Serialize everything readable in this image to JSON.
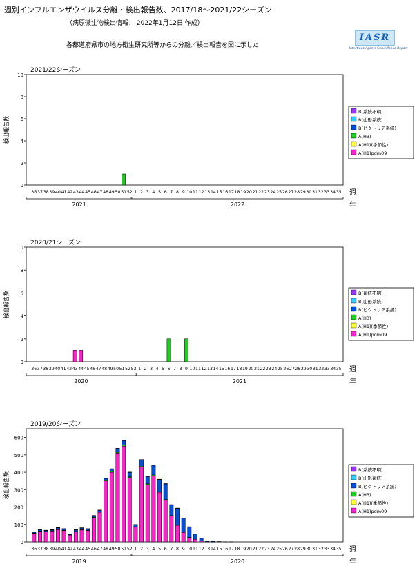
{
  "header": {
    "title": "週別インフルエンザウイルス分離・検出報告数、2017/18～2021/22シーズン",
    "info": "（病原微生物検出情報： 2022年1月12日 作成）",
    "description": "各都道府県市の地方衛生研究所等からの分離／検出報告を図に示した"
  },
  "logo": {
    "mark": "IASR",
    "subtitle": "Infectious Agents Surveillance Report"
  },
  "legend_labels": [
    "B(系統不明)",
    "B(山形系統)",
    "B(ビクトリア系統)",
    "A(H3)",
    "A(H1)(季節性)",
    "A(H1)pdm09"
  ],
  "colors": {
    "B_unknown": "#9933ff",
    "B_yamagata": "#33ccff",
    "B_victoria": "#0050e0",
    "A_H3": "#22cc22",
    "A_H1_seasonal": "#ffff33",
    "A_H1pdm09": "#ff22cc",
    "bar_outline": "#000000"
  },
  "chart_data": [
    {
      "type": "bar",
      "stacked": true,
      "title": "2021/22シーズン",
      "ylabel": "検出報告数",
      "xlabel": "週",
      "year_axis_label": "年",
      "ylim": [
        0,
        10
      ],
      "yticks": [
        0,
        2,
        4,
        6,
        8,
        10
      ],
      "year_labels": [
        "2021",
        "2022"
      ],
      "categories": [
        "36",
        "37",
        "38",
        "39",
        "40",
        "41",
        "42",
        "43",
        "44",
        "45",
        "46",
        "47",
        "48",
        "49",
        "50",
        "51",
        "52",
        "1",
        "2",
        "3",
        "4",
        "5",
        "6",
        "7",
        "8",
        "9",
        "10",
        "11",
        "12",
        "13",
        "14",
        "15",
        "16",
        "17",
        "18",
        "19",
        "20",
        "21",
        "22",
        "23",
        "24",
        "25",
        "26",
        "27",
        "28",
        "29",
        "30",
        "31",
        "32",
        "33",
        "34",
        "35"
      ],
      "series": [
        {
          "name": "A(H1)pdm09",
          "values": [
            0,
            0,
            0,
            0,
            0,
            0,
            0,
            0,
            0,
            0,
            0,
            0,
            0,
            0,
            0,
            0,
            0,
            0,
            0,
            0,
            0,
            0,
            0,
            0,
            0,
            0,
            0,
            0,
            0,
            0,
            0,
            0,
            0,
            0,
            0,
            0,
            0,
            0,
            0,
            0,
            0,
            0,
            0,
            0,
            0,
            0,
            0,
            0,
            0,
            0,
            0,
            0
          ]
        },
        {
          "name": "A(H1)(季節性)",
          "values": [
            0,
            0,
            0,
            0,
            0,
            0,
            0,
            0,
            0,
            0,
            0,
            0,
            0,
            0,
            0,
            0,
            0,
            0,
            0,
            0,
            0,
            0,
            0,
            0,
            0,
            0,
            0,
            0,
            0,
            0,
            0,
            0,
            0,
            0,
            0,
            0,
            0,
            0,
            0,
            0,
            0,
            0,
            0,
            0,
            0,
            0,
            0,
            0,
            0,
            0,
            0,
            0
          ]
        },
        {
          "name": "A(H3)",
          "values": [
            0,
            0,
            0,
            0,
            0,
            0,
            0,
            0,
            0,
            0,
            0,
            0,
            0,
            0,
            0,
            1,
            0,
            0,
            0,
            0,
            0,
            0,
            0,
            0,
            0,
            0,
            0,
            0,
            0,
            0,
            0,
            0,
            0,
            0,
            0,
            0,
            0,
            0,
            0,
            0,
            0,
            0,
            0,
            0,
            0,
            0,
            0,
            0,
            0,
            0,
            0,
            0
          ]
        },
        {
          "name": "B(ビクトリア系統)",
          "values": [
            0,
            0,
            0,
            0,
            0,
            0,
            0,
            0,
            0,
            0,
            0,
            0,
            0,
            0,
            0,
            0,
            0,
            0,
            0,
            0,
            0,
            0,
            0,
            0,
            0,
            0,
            0,
            0,
            0,
            0,
            0,
            0,
            0,
            0,
            0,
            0,
            0,
            0,
            0,
            0,
            0,
            0,
            0,
            0,
            0,
            0,
            0,
            0,
            0,
            0,
            0,
            0
          ]
        },
        {
          "name": "B(山形系統)",
          "values": [
            0,
            0,
            0,
            0,
            0,
            0,
            0,
            0,
            0,
            0,
            0,
            0,
            0,
            0,
            0,
            0,
            0,
            0,
            0,
            0,
            0,
            0,
            0,
            0,
            0,
            0,
            0,
            0,
            0,
            0,
            0,
            0,
            0,
            0,
            0,
            0,
            0,
            0,
            0,
            0,
            0,
            0,
            0,
            0,
            0,
            0,
            0,
            0,
            0,
            0,
            0,
            0
          ]
        },
        {
          "name": "B(系統不明)",
          "values": [
            0,
            0,
            0,
            0,
            0,
            0,
            0,
            0,
            0,
            0,
            0,
            0,
            0,
            0,
            0,
            0,
            0,
            0,
            0,
            0,
            0,
            0,
            0,
            0,
            0,
            0,
            0,
            0,
            0,
            0,
            0,
            0,
            0,
            0,
            0,
            0,
            0,
            0,
            0,
            0,
            0,
            0,
            0,
            0,
            0,
            0,
            0,
            0,
            0,
            0,
            0,
            0
          ]
        }
      ]
    },
    {
      "type": "bar",
      "stacked": true,
      "title": "2020/21シーズン",
      "ylabel": "検出報告数",
      "xlabel": "週",
      "year_axis_label": "年",
      "ylim": [
        0,
        10
      ],
      "yticks": [
        0,
        2,
        4,
        6,
        8,
        10
      ],
      "year_labels": [
        "2020",
        "2021"
      ],
      "categories": [
        "36",
        "37",
        "38",
        "39",
        "40",
        "41",
        "42",
        "43",
        "44",
        "45",
        "46",
        "47",
        "48",
        "49",
        "50",
        "51",
        "52",
        "53",
        "1",
        "2",
        "3",
        "4",
        "5",
        "6",
        "7",
        "8",
        "9",
        "10",
        "11",
        "12",
        "13",
        "14",
        "15",
        "16",
        "17",
        "18",
        "19",
        "20",
        "21",
        "22",
        "23",
        "24",
        "25",
        "26",
        "27",
        "28",
        "29",
        "30",
        "31",
        "32",
        "33",
        "34",
        "35"
      ],
      "series": [
        {
          "name": "A(H1)pdm09",
          "values": [
            0,
            0,
            0,
            0,
            0,
            0,
            0,
            1,
            1,
            0,
            0,
            0,
            0,
            0,
            0,
            0,
            0,
            0,
            0,
            0,
            0,
            0,
            0,
            0,
            0,
            0,
            0,
            0,
            0,
            0,
            0,
            0,
            0,
            0,
            0,
            0,
            0,
            0,
            0,
            0,
            0,
            0,
            0,
            0,
            0,
            0,
            0,
            0,
            0,
            0,
            0,
            0,
            0
          ]
        },
        {
          "name": "A(H1)(季節性)",
          "values": [
            0,
            0,
            0,
            0,
            0,
            0,
            0,
            0,
            0,
            0,
            0,
            0,
            0,
            0,
            0,
            0,
            0,
            0,
            0,
            0,
            0,
            0,
            0,
            0,
            0,
            0,
            0,
            0,
            0,
            0,
            0,
            0,
            0,
            0,
            0,
            0,
            0,
            0,
            0,
            0,
            0,
            0,
            0,
            0,
            0,
            0,
            0,
            0,
            0,
            0,
            0,
            0,
            0
          ]
        },
        {
          "name": "A(H3)",
          "values": [
            0,
            0,
            0,
            0,
            0,
            0,
            0,
            0,
            0,
            0,
            0,
            0,
            0,
            0,
            0,
            0,
            0,
            0,
            0,
            0,
            0,
            0,
            0,
            2,
            0,
            0,
            2,
            0,
            0,
            0,
            0,
            0,
            0,
            0,
            0,
            0,
            0,
            0,
            0,
            0,
            0,
            0,
            0,
            0,
            0,
            0,
            0,
            0,
            0,
            0,
            0,
            0,
            0
          ]
        },
        {
          "name": "B(ビクトリア系統)",
          "values": [
            0,
            0,
            0,
            0,
            0,
            0,
            0,
            0,
            0,
            0,
            0,
            0,
            0,
            0,
            0,
            0,
            0,
            0,
            0,
            0,
            0,
            0,
            0,
            0,
            0,
            0,
            0,
            0,
            0,
            0,
            0,
            0,
            0,
            0,
            0,
            0,
            0,
            0,
            0,
            0,
            0,
            0,
            0,
            0,
            0,
            0,
            0,
            0,
            0,
            0,
            0,
            0,
            0
          ]
        },
        {
          "name": "B(山形系統)",
          "values": [
            0,
            0,
            0,
            0,
            0,
            0,
            0,
            0,
            0,
            0,
            0,
            0,
            0,
            0,
            0,
            0,
            0,
            0,
            0,
            0,
            0,
            0,
            0,
            0,
            0,
            0,
            0,
            0,
            0,
            0,
            0,
            0,
            0,
            0,
            0,
            0,
            0,
            0,
            0,
            0,
            0,
            0,
            0,
            0,
            0,
            0,
            0,
            0,
            0,
            0,
            0,
            0,
            0
          ]
        },
        {
          "name": "B(系統不明)",
          "values": [
            0,
            0,
            0,
            0,
            0,
            0,
            0,
            0,
            0,
            0,
            0,
            0,
            0,
            0,
            0,
            0,
            0,
            0,
            0,
            0,
            0,
            0,
            0,
            0,
            0,
            0,
            0,
            0,
            0,
            0,
            0,
            0,
            0,
            0,
            0,
            0,
            0,
            0,
            0,
            0,
            0,
            0,
            0,
            0,
            0,
            0,
            0,
            0,
            0,
            0,
            0,
            0,
            0
          ]
        }
      ]
    },
    {
      "type": "bar",
      "stacked": true,
      "title": "2019/20シーズン",
      "ylabel": "検出報告数",
      "xlabel": "週",
      "year_axis_label": "年",
      "ylim": [
        0,
        650
      ],
      "yticks": [
        0,
        100,
        200,
        300,
        400,
        500,
        600
      ],
      "year_labels": [
        "2019",
        "2020"
      ],
      "categories": [
        "36",
        "37",
        "38",
        "39",
        "40",
        "41",
        "42",
        "43",
        "44",
        "45",
        "46",
        "47",
        "48",
        "49",
        "50",
        "51",
        "52",
        "1",
        "2",
        "3",
        "4",
        "5",
        "6",
        "7",
        "8",
        "9",
        "10",
        "11",
        "12",
        "13",
        "14",
        "15",
        "16",
        "17",
        "18",
        "19",
        "20",
        "21",
        "22",
        "23",
        "24",
        "25",
        "26",
        "27",
        "28",
        "29",
        "30",
        "31",
        "32",
        "33",
        "34",
        "35"
      ],
      "series": [
        {
          "name": "A(H1)pdm09",
          "values": [
            50,
            60,
            58,
            62,
            70,
            65,
            40,
            58,
            68,
            65,
            140,
            170,
            350,
            400,
            510,
            550,
            370,
            85,
            430,
            330,
            380,
            285,
            240,
            150,
            95,
            55,
            25,
            15,
            5,
            2,
            1,
            0,
            0,
            0,
            0,
            0,
            0,
            0,
            0,
            0,
            0,
            0,
            0,
            0,
            0,
            0,
            0,
            0,
            0,
            0,
            0,
            0
          ]
        },
        {
          "name": "A(H1)(季節性)",
          "values": [
            0,
            0,
            0,
            0,
            0,
            0,
            0,
            0,
            0,
            0,
            0,
            0,
            0,
            0,
            0,
            0,
            0,
            0,
            0,
            0,
            0,
            0,
            0,
            0,
            0,
            0,
            0,
            0,
            0,
            0,
            0,
            0,
            0,
            0,
            0,
            0,
            0,
            0,
            0,
            0,
            0,
            0,
            0,
            0,
            0,
            0,
            0,
            0,
            0,
            0,
            0,
            0
          ]
        },
        {
          "name": "A(H3)",
          "values": [
            1,
            2,
            2,
            2,
            2,
            2,
            1,
            2,
            3,
            2,
            3,
            3,
            4,
            5,
            5,
            6,
            4,
            2,
            5,
            4,
            5,
            3,
            3,
            2,
            2,
            1,
            1,
            0,
            0,
            0,
            0,
            0,
            0,
            0,
            0,
            0,
            0,
            0,
            0,
            0,
            0,
            0,
            0,
            0,
            0,
            0,
            0,
            0,
            0,
            0,
            0,
            0
          ]
        },
        {
          "name": "B(ビクトリア系統)",
          "values": [
            5,
            8,
            5,
            5,
            8,
            7,
            4,
            8,
            8,
            7,
            7,
            7,
            10,
            12,
            20,
            25,
            25,
            12,
            35,
            40,
            55,
            70,
            90,
            60,
            95,
            80,
            60,
            30,
            15,
            5,
            3,
            2,
            1,
            1,
            0,
            0,
            0,
            0,
            0,
            0,
            0,
            0,
            0,
            0,
            0,
            0,
            0,
            0,
            0,
            0,
            0,
            0
          ]
        },
        {
          "name": "B(山形系統)",
          "values": [
            0,
            0,
            0,
            0,
            0,
            0,
            0,
            0,
            0,
            0,
            0,
            0,
            0,
            0,
            0,
            0,
            0,
            0,
            0,
            0,
            0,
            0,
            0,
            0,
            0,
            0,
            0,
            0,
            0,
            0,
            0,
            0,
            0,
            0,
            0,
            0,
            0,
            0,
            0,
            0,
            0,
            0,
            0,
            0,
            0,
            0,
            0,
            0,
            0,
            0,
            0,
            0
          ]
        },
        {
          "name": "B(系統不明)",
          "values": [
            2,
            2,
            2,
            2,
            2,
            2,
            1,
            2,
            2,
            2,
            2,
            3,
            3,
            3,
            3,
            3,
            2,
            1,
            3,
            3,
            3,
            2,
            2,
            2,
            2,
            1,
            1,
            1,
            0,
            0,
            0,
            0,
            0,
            0,
            0,
            0,
            0,
            0,
            0,
            0,
            0,
            0,
            0,
            0,
            0,
            0,
            0,
            0,
            0,
            0,
            0,
            0
          ]
        }
      ]
    }
  ]
}
